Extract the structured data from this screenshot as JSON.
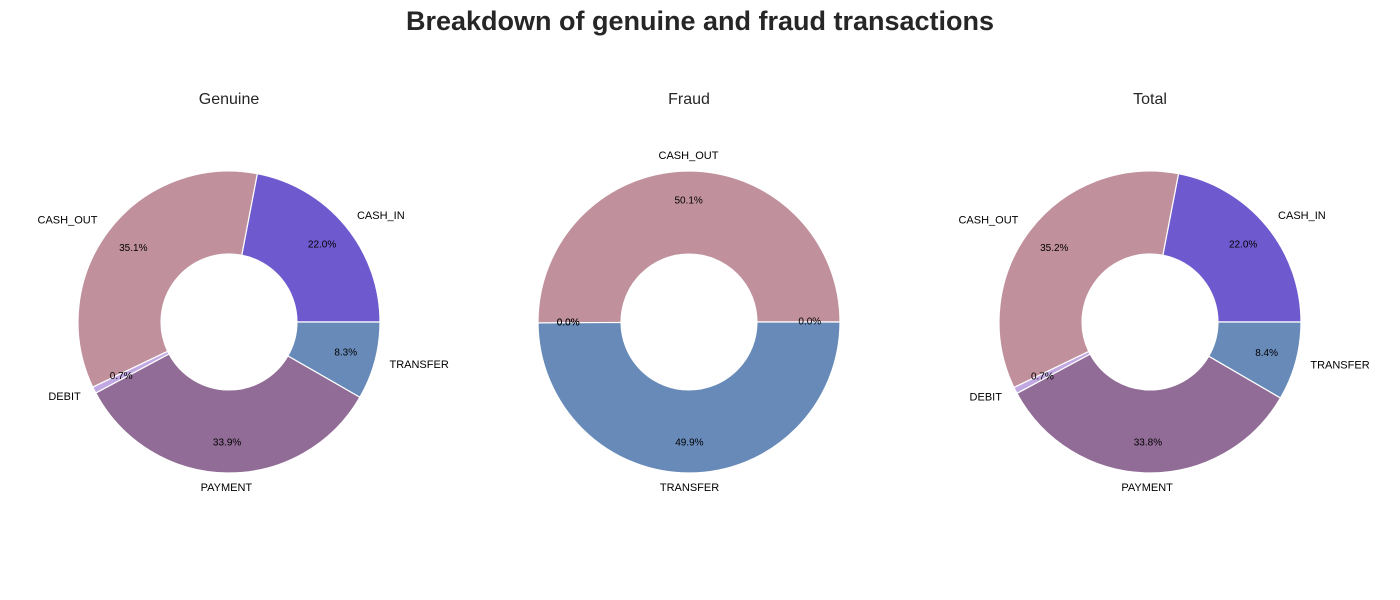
{
  "title": "Breakdown of genuine and fraud transactions",
  "chart_data": [
    {
      "type": "pie",
      "title": "Genuine",
      "start_angle": 0,
      "hole": 0.45,
      "slices": [
        {
          "label": "CASH_IN",
          "value": 22.0,
          "pct_label": "22.0%",
          "color": "#6e5ace"
        },
        {
          "label": "CASH_OUT",
          "value": 35.1,
          "pct_label": "35.1%",
          "color": "#c0909c"
        },
        {
          "label": "DEBIT",
          "value": 0.7,
          "pct_label": "0.7%",
          "color": "#c2a8e2"
        },
        {
          "label": "PAYMENT",
          "value": 33.9,
          "pct_label": "33.9%",
          "color": "#916c96"
        },
        {
          "label": "TRANSFER",
          "value": 8.3,
          "pct_label": "8.3%",
          "color": "#678ab9"
        }
      ]
    },
    {
      "type": "pie",
      "title": "Fraud",
      "start_angle": 0,
      "hole": 0.45,
      "slices": [
        {
          "label": "",
          "value": 0.0,
          "pct_label": "0.0%",
          "color": "#6e5ace"
        },
        {
          "label": "CASH_OUT",
          "value": 50.1,
          "pct_label": "50.1%",
          "color": "#c0909c"
        },
        {
          "label": "",
          "value": 0.0,
          "pct_label": "0.0%",
          "color": "#c2a8e2"
        },
        {
          "label": "",
          "value": 0.0,
          "pct_label": "0.0%",
          "color": "#916c96"
        },
        {
          "label": "TRANSFER",
          "value": 49.9,
          "pct_label": "49.9%",
          "color": "#678ab9"
        }
      ]
    },
    {
      "type": "pie",
      "title": "Total",
      "start_angle": 0,
      "hole": 0.45,
      "slices": [
        {
          "label": "CASH_IN",
          "value": 22.0,
          "pct_label": "22.0%",
          "color": "#6e5ace"
        },
        {
          "label": "CASH_OUT",
          "value": 35.2,
          "pct_label": "35.2%",
          "color": "#c0909c"
        },
        {
          "label": "DEBIT",
          "value": 0.7,
          "pct_label": "0.7%",
          "color": "#c2a8e2"
        },
        {
          "label": "PAYMENT",
          "value": 33.8,
          "pct_label": "33.8%",
          "color": "#916c96"
        },
        {
          "label": "TRANSFER",
          "value": 8.4,
          "pct_label": "8.4%",
          "color": "#678ab9"
        }
      ]
    }
  ]
}
